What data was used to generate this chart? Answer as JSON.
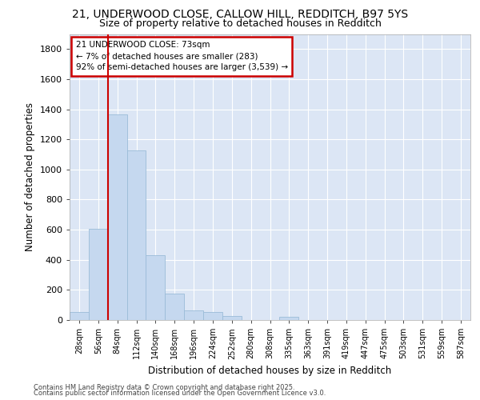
{
  "title_line1": "21, UNDERWOOD CLOSE, CALLOW HILL, REDDITCH, B97 5YS",
  "title_line2": "Size of property relative to detached houses in Redditch",
  "xlabel": "Distribution of detached houses by size in Redditch",
  "ylabel": "Number of detached properties",
  "categories": [
    "28sqm",
    "56sqm",
    "84sqm",
    "112sqm",
    "140sqm",
    "168sqm",
    "196sqm",
    "224sqm",
    "252sqm",
    "280sqm",
    "308sqm",
    "335sqm",
    "363sqm",
    "391sqm",
    "419sqm",
    "447sqm",
    "475sqm",
    "503sqm",
    "531sqm",
    "559sqm",
    "587sqm"
  ],
  "values": [
    55,
    605,
    1365,
    1125,
    430,
    175,
    65,
    55,
    25,
    0,
    0,
    20,
    0,
    0,
    0,
    0,
    0,
    0,
    0,
    0,
    0
  ],
  "bar_color": "#c5d8ef",
  "bar_edge_color": "#9bbcd8",
  "vline_x_index": 1.5,
  "vline_color": "#cc0000",
  "annotation_text": "21 UNDERWOOD CLOSE: 73sqm\n← 7% of detached houses are smaller (283)\n92% of semi-detached houses are larger (3,539) →",
  "annotation_box_color": "#ffffff",
  "annotation_box_edge": "#cc0000",
  "ylim": [
    0,
    1900
  ],
  "yticks": [
    0,
    200,
    400,
    600,
    800,
    1000,
    1200,
    1400,
    1600,
    1800
  ],
  "background_color": "#dce6f5",
  "grid_color": "#ffffff",
  "footer_line1": "Contains HM Land Registry data © Crown copyright and database right 2025.",
  "footer_line2": "Contains public sector information licensed under the Open Government Licence v3.0."
}
